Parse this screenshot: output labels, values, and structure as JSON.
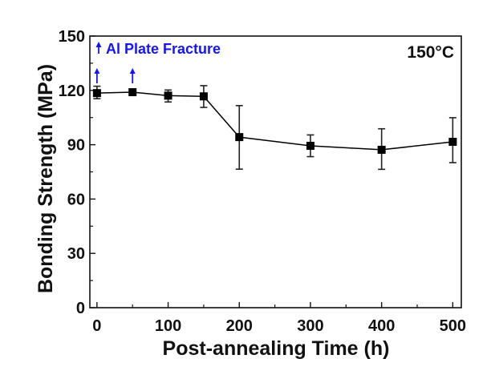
{
  "chart_data": {
    "type": "line",
    "title": "",
    "xlabel": "Post-annealing Time (h)",
    "ylabel": "Bonding Strength (MPa)",
    "xlim": [
      -10,
      512
    ],
    "ylim": [
      0,
      150
    ],
    "xticks": [
      0,
      100,
      200,
      300,
      400,
      500
    ],
    "xminor_ticks": [
      50,
      150,
      250,
      350,
      450
    ],
    "yticks": [
      0,
      30,
      60,
      90,
      120,
      150
    ],
    "yminor_ticks": [
      15,
      45,
      75,
      105,
      135
    ],
    "grid": false,
    "annotation": "150°C",
    "annotation_position": "top-right",
    "legend": {
      "position": "top-left",
      "entries": [
        {
          "symbol": "up-arrow",
          "label": "Al Plate Fracture",
          "color": "#1414ff"
        }
      ]
    },
    "series": [
      {
        "name": "Bonding Strength",
        "color": "#000000",
        "marker": "square",
        "x": [
          0,
          50,
          100,
          150,
          200,
          300,
          400,
          500
        ],
        "y": [
          118.5,
          119.0,
          117.1,
          116.7,
          94.2,
          89.4,
          87.2,
          91.6
        ],
        "err_low": [
          115.4,
          118.0,
          113.6,
          110.6,
          76.5,
          83.4,
          76.4,
          80.1
        ],
        "err_high": [
          122.3,
          120.0,
          120.2,
          122.6,
          111.6,
          95.4,
          98.8,
          104.9
        ]
      }
    ],
    "fracture_points": [
      0,
      50
    ],
    "fracture_color": "#1414ff"
  }
}
